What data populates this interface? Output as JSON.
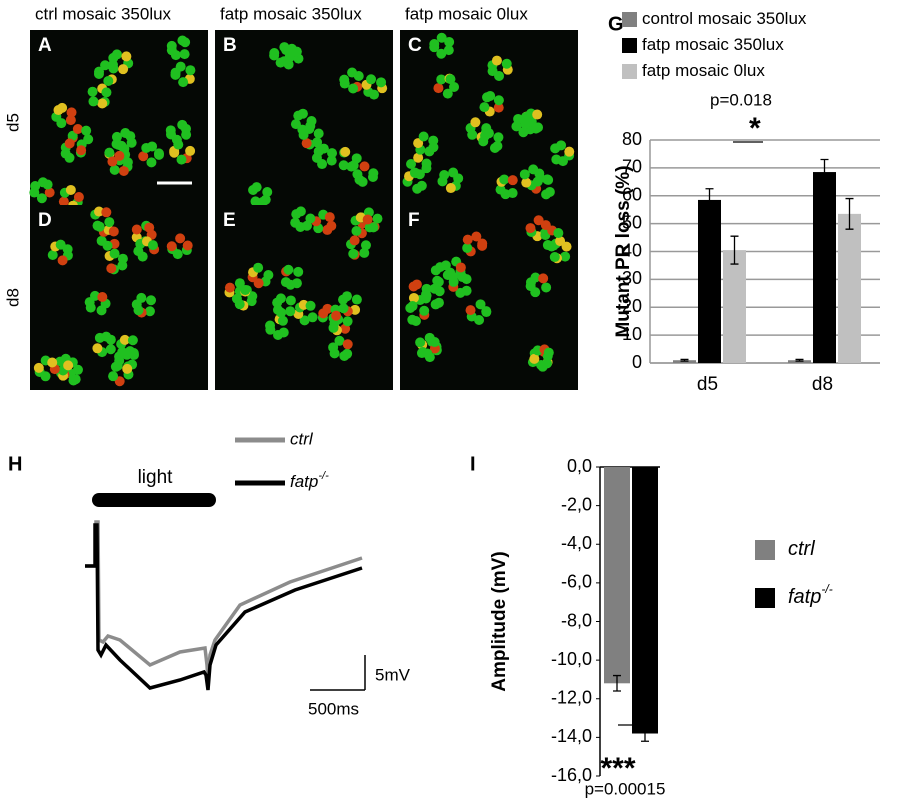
{
  "column_headers": [
    "ctrl mosaic 350lux",
    "fatp mosaic 350lux",
    "fatp mosaic 0lux"
  ],
  "row_labels": [
    "d5",
    "d8"
  ],
  "panels": [
    "A",
    "B",
    "C",
    "D",
    "E",
    "F"
  ],
  "trace": {
    "label": "H",
    "stimulus": "light",
    "legend": [
      {
        "name": "ctrl"
      },
      {
        "name": "fatp",
        "superscript": "-/-"
      }
    ],
    "scale_y": "5mV",
    "scale_x": "500ms"
  },
  "chart_data": [
    {
      "type": "bar",
      "label": "G",
      "categories": [
        "d5",
        "d8"
      ],
      "series": [
        {
          "name": "control mosaic 350lux",
          "color": "#808080",
          "values": [
            1,
            1
          ],
          "errors": [
            0.3,
            0.3
          ]
        },
        {
          "name": "fatp mosaic 350lux",
          "color": "#000000",
          "values": [
            58.5,
            68.5
          ],
          "errors": [
            4,
            4.5
          ]
        },
        {
          "name": "fatp mosaic 0lux",
          "color": "#c0c0c0",
          "values": [
            40.5,
            53.5
          ],
          "errors": [
            5,
            5.5
          ]
        }
      ],
      "ylabel": "Mutant PR loss (%)",
      "ylim": [
        0,
        80
      ],
      "yticks": [
        0,
        10,
        20,
        30,
        40,
        50,
        60,
        70,
        80
      ],
      "grid": true,
      "annotations": [
        "p=0.018",
        "*"
      ]
    },
    {
      "type": "bar",
      "label": "I",
      "categories": [
        null
      ],
      "series": [
        {
          "name": "ctrl",
          "color": "#808080",
          "values": [
            -11.2
          ],
          "errors": [
            0.4
          ]
        },
        {
          "name": "fatp",
          "superscript": "-/-",
          "color": "#000000",
          "values": [
            -13.8
          ],
          "errors": [
            0.4
          ]
        }
      ],
      "ylabel": "Amplitude (mV)",
      "ylim": [
        -16,
        0
      ],
      "yticks": [
        {
          "value": -16,
          "label": "-16,0"
        },
        {
          "value": -14,
          "label": "-14,0"
        },
        {
          "value": -12,
          "label": "-12,0"
        },
        {
          "value": -10,
          "label": "-10,0"
        },
        {
          "value": -8,
          "label": "-8,0"
        },
        {
          "value": -6,
          "label": "-6,0"
        },
        {
          "value": -4,
          "label": "-4,0"
        },
        {
          "value": -2,
          "label": "-2,0"
        },
        {
          "value": 0,
          "label": "0,0"
        }
      ],
      "grid": false,
      "annotations": [
        "***",
        "p=0.00015"
      ]
    }
  ]
}
